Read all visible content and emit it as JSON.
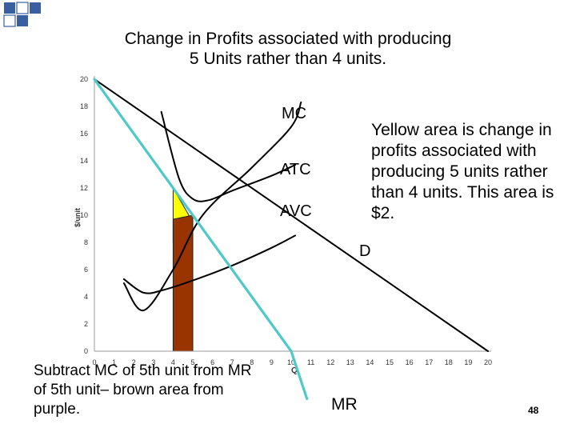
{
  "title": {
    "line1": "Change in Profits associated with producing",
    "line2": "5 Units rather than 4 units."
  },
  "notes": {
    "yellow": "Yellow area is change in profits associated with producing 5 units rather than 4 units. This area is $2.",
    "subtract": "Subtract MC of 5th unit from MR of 5th unit– brown area from purple."
  },
  "mr_label": "MR",
  "page_number": "48",
  "colors": {
    "mr_line": "#4fc8c8",
    "yellow_area": "#ffff00",
    "brown_area": "#993300",
    "curves": "#000000",
    "deco_squares": "#3a5fa0"
  },
  "chart_data": {
    "type": "line",
    "title": "",
    "xlabel": "Q",
    "ylabel": "$/unit",
    "xlim": [
      0,
      20
    ],
    "ylim": [
      0,
      20
    ],
    "grid": false,
    "x_ticks": [
      0,
      1,
      2,
      3,
      4,
      5,
      6,
      7,
      8,
      9,
      10,
      11,
      12,
      13,
      14,
      15,
      16,
      17,
      18,
      19,
      20
    ],
    "y_ticks": [
      0,
      2,
      4,
      6,
      8,
      10,
      12,
      14,
      16,
      18,
      20
    ],
    "series": [
      {
        "name": "MC",
        "points": [
          [
            1.5,
            5
          ],
          [
            2.5,
            3
          ],
          [
            4,
            6
          ],
          [
            5.5,
            10
          ],
          [
            8,
            13.5
          ],
          [
            10,
            16.5
          ],
          [
            10.5,
            18.3
          ]
        ]
      },
      {
        "name": "ATC",
        "points": [
          [
            3.4,
            17.6
          ],
          [
            4.3,
            12.7
          ],
          [
            5,
            11.2
          ],
          [
            5.8,
            11.1
          ],
          [
            7,
            11.8
          ],
          [
            9,
            12.9
          ],
          [
            10.2,
            13.7
          ]
        ]
      },
      {
        "name": "AVC",
        "points": [
          [
            1.5,
            5.3
          ],
          [
            2.5,
            4.3
          ],
          [
            3.5,
            4.5
          ],
          [
            5,
            5.2
          ],
          [
            7,
            6.3
          ],
          [
            9,
            7.6
          ],
          [
            10.2,
            8.5
          ]
        ]
      },
      {
        "name": "D",
        "points": [
          [
            0,
            20
          ],
          [
            20,
            0
          ]
        ]
      },
      {
        "name": "MR",
        "points": [
          [
            0,
            20
          ],
          [
            10,
            0
          ],
          [
            10.8,
            -3.5
          ]
        ]
      }
    ],
    "areas": [
      {
        "name": "yellow",
        "points": [
          [
            4,
            12
          ],
          [
            4,
            8
          ],
          [
            4.8,
            10
          ]
        ]
      },
      {
        "name": "brown",
        "points": [
          [
            4,
            9.7
          ],
          [
            5,
            10
          ],
          [
            5,
            0
          ],
          [
            4,
            0
          ]
        ]
      }
    ],
    "curve_labels": [
      "MC",
      "ATC",
      "AVC",
      "D"
    ]
  }
}
